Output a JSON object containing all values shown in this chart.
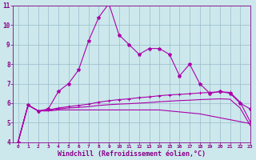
{
  "x": [
    0,
    1,
    2,
    3,
    4,
    5,
    6,
    7,
    8,
    9,
    10,
    11,
    12,
    13,
    14,
    15,
    16,
    17,
    18,
    19,
    20,
    21,
    22,
    23
  ],
  "line1": [
    4.0,
    5.9,
    5.6,
    5.7,
    6.6,
    7.0,
    7.7,
    9.2,
    10.4,
    11.1,
    9.5,
    9.0,
    8.5,
    8.8,
    8.8,
    8.5,
    7.4,
    8.0,
    7.0,
    6.5,
    6.6,
    6.5,
    6.0,
    5.7
  ],
  "line2": [
    4.0,
    5.9,
    5.6,
    5.6,
    5.65,
    5.65,
    5.65,
    5.65,
    5.65,
    5.65,
    5.65,
    5.65,
    5.65,
    5.65,
    5.65,
    5.6,
    5.55,
    5.5,
    5.45,
    5.35,
    5.25,
    5.15,
    5.05,
    4.95
  ],
  "line3": [
    4.0,
    5.9,
    5.6,
    5.65,
    5.75,
    5.82,
    5.88,
    5.95,
    6.05,
    6.12,
    6.18,
    6.22,
    6.28,
    6.32,
    6.38,
    6.42,
    6.45,
    6.48,
    6.52,
    6.55,
    6.58,
    6.55,
    6.05,
    5.05
  ],
  "line4": [
    4.0,
    5.9,
    5.6,
    5.62,
    5.7,
    5.75,
    5.78,
    5.82,
    5.88,
    5.92,
    5.95,
    5.97,
    6.0,
    6.03,
    6.07,
    6.1,
    6.13,
    6.15,
    6.18,
    6.2,
    6.22,
    6.2,
    5.75,
    4.85
  ],
  "line_color": "#aa00aa",
  "bg_color": "#cce8ec",
  "grid_color": "#99bbcc",
  "text_color": "#880088",
  "xlabel": "Windchill (Refroidissement éolien,°C)",
  "ylim": [
    4,
    11
  ],
  "xlim": [
    -0.5,
    23
  ],
  "yticks": [
    4,
    5,
    6,
    7,
    8,
    9,
    10,
    11
  ],
  "xticks": [
    0,
    1,
    2,
    3,
    4,
    5,
    6,
    7,
    8,
    9,
    10,
    11,
    12,
    13,
    14,
    15,
    16,
    17,
    18,
    19,
    20,
    21,
    22,
    23
  ]
}
